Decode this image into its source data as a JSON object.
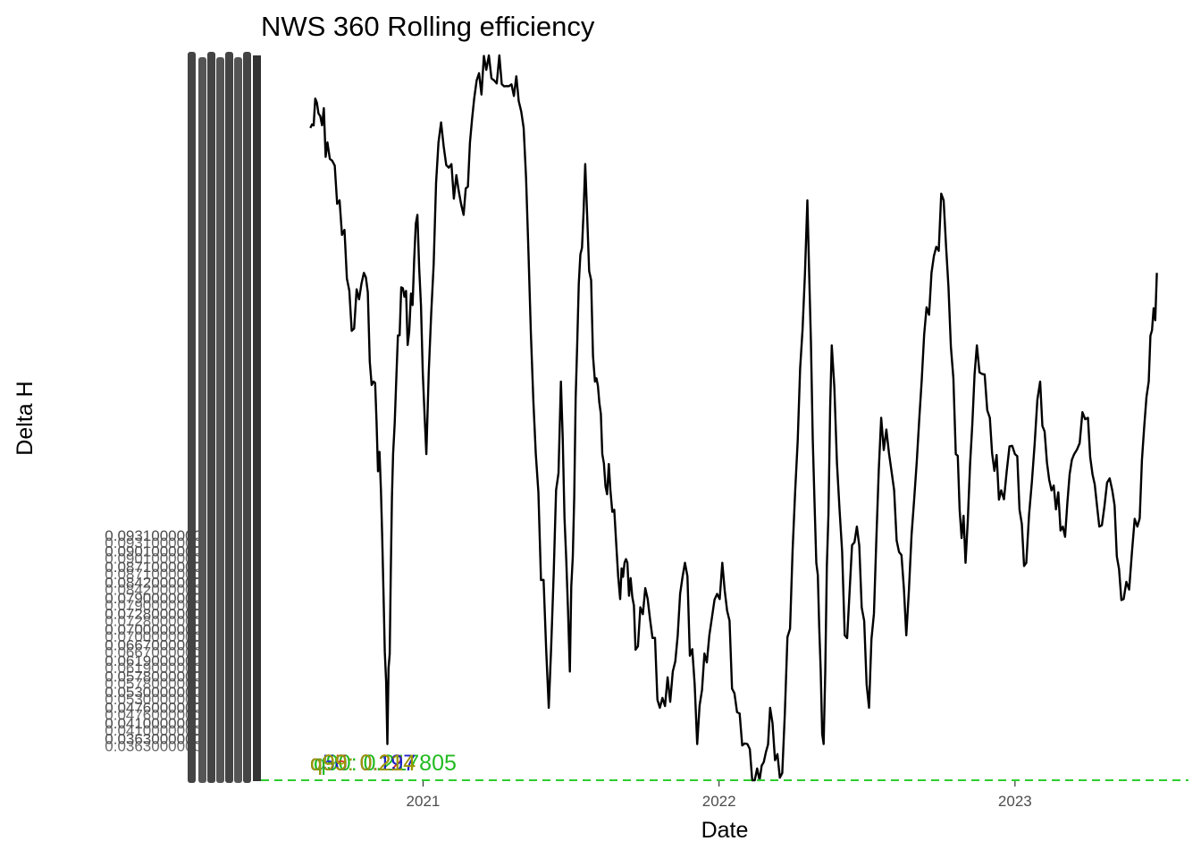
{
  "chart_data": {
    "type": "line",
    "title": "NWS 360 Rolling efficiency",
    "xlabel": "Date",
    "ylabel": "Delta H",
    "x_ticks": [
      "2021",
      "2022",
      "2023"
    ],
    "x_range": [
      "2020-06-15",
      "2023-08-03"
    ],
    "y_ticks_legible": [
      "0.0931000000",
      "0.0901000000",
      "0.0871000000",
      "0.0842000000",
      "0.0790000000",
      "0.0728000000",
      "0.0700000000",
      "0.0667000000",
      "0.0619000000",
      "0.0578000000",
      "0.0530000000",
      "0.0476000000",
      "0.0410000000",
      "0.0363000000"
    ],
    "y_range": [
      0,
      1
    ],
    "series": [
      {
        "color": "#000000",
        "x": [
          "2020-08-15",
          "2020-08-25",
          "2020-09-05",
          "2020-09-20",
          "2020-10-05",
          "2020-10-20",
          "2020-11-01",
          "2020-11-10",
          "2020-11-18",
          "2020-11-25",
          "2020-12-05",
          "2020-12-15",
          "2020-12-25",
          "2021-01-05",
          "2021-01-20",
          "2021-02-05",
          "2021-02-20",
          "2021-03-05",
          "2021-03-20",
          "2021-04-05",
          "2021-04-20",
          "2021-05-05",
          "2021-05-20",
          "2021-06-05",
          "2021-06-20",
          "2021-07-01",
          "2021-07-10",
          "2021-07-20",
          "2021-08-01",
          "2021-08-10",
          "2021-08-20",
          "2021-09-01",
          "2021-09-10",
          "2021-09-20",
          "2021-10-05",
          "2021-10-20",
          "2021-11-05",
          "2021-11-20",
          "2021-12-05",
          "2021-12-20",
          "2022-01-05",
          "2022-01-20",
          "2022-02-05",
          "2022-02-20",
          "2022-03-05",
          "2022-03-20",
          "2022-04-05",
          "2022-04-20",
          "2022-05-01",
          "2022-05-10",
          "2022-05-20",
          "2022-06-05",
          "2022-06-20",
          "2022-07-05",
          "2022-07-20",
          "2022-08-05",
          "2022-08-20",
          "2022-09-05",
          "2022-09-20",
          "2022-10-05",
          "2022-10-20",
          "2022-11-01",
          "2022-11-15",
          "2022-12-01",
          "2022-12-15",
          "2023-01-01",
          "2023-01-15",
          "2023-02-01",
          "2023-02-15",
          "2023-03-01",
          "2023-03-15",
          "2023-04-01",
          "2023-04-15",
          "2023-05-01",
          "2023-05-15",
          "2023-06-01",
          "2023-06-15",
          "2023-06-25"
        ],
        "y": [
          0.9,
          0.92,
          0.88,
          0.8,
          0.62,
          0.7,
          0.55,
          0.4,
          0.05,
          0.45,
          0.68,
          0.62,
          0.78,
          0.45,
          0.88,
          0.85,
          0.78,
          0.94,
          0.98,
          1.0,
          0.96,
          0.9,
          0.45,
          0.1,
          0.55,
          0.15,
          0.6,
          0.85,
          0.55,
          0.45,
          0.4,
          0.25,
          0.3,
          0.18,
          0.25,
          0.1,
          0.15,
          0.3,
          0.05,
          0.2,
          0.3,
          0.12,
          0.05,
          0.0,
          0.1,
          0.01,
          0.4,
          0.8,
          0.3,
          0.05,
          0.6,
          0.2,
          0.35,
          0.1,
          0.5,
          0.4,
          0.2,
          0.5,
          0.7,
          0.8,
          0.45,
          0.3,
          0.6,
          0.5,
          0.4,
          0.45,
          0.3,
          0.55,
          0.4,
          0.35,
          0.45,
          0.5,
          0.35,
          0.4,
          0.25,
          0.35,
          0.55,
          0.7
        ]
      },
      {
        "name": "q90",
        "color": "#2ecc2e",
        "dashed": true,
        "x": [
          "2020-06-15",
          "2023-08-03"
        ],
        "y": [
          0,
          0
        ]
      }
    ],
    "annotations": [
      {
        "text": "q90: 0.217805",
        "color": "#22bb22"
      },
      {
        "text": "q95: 0.224",
        "color": "#e03020"
      },
      {
        "text": "q50: 0.197",
        "color": "#2020cc"
      },
      {
        "text": "q99: 0.214",
        "color": "#9a9a00"
      }
    ],
    "grid": false
  }
}
